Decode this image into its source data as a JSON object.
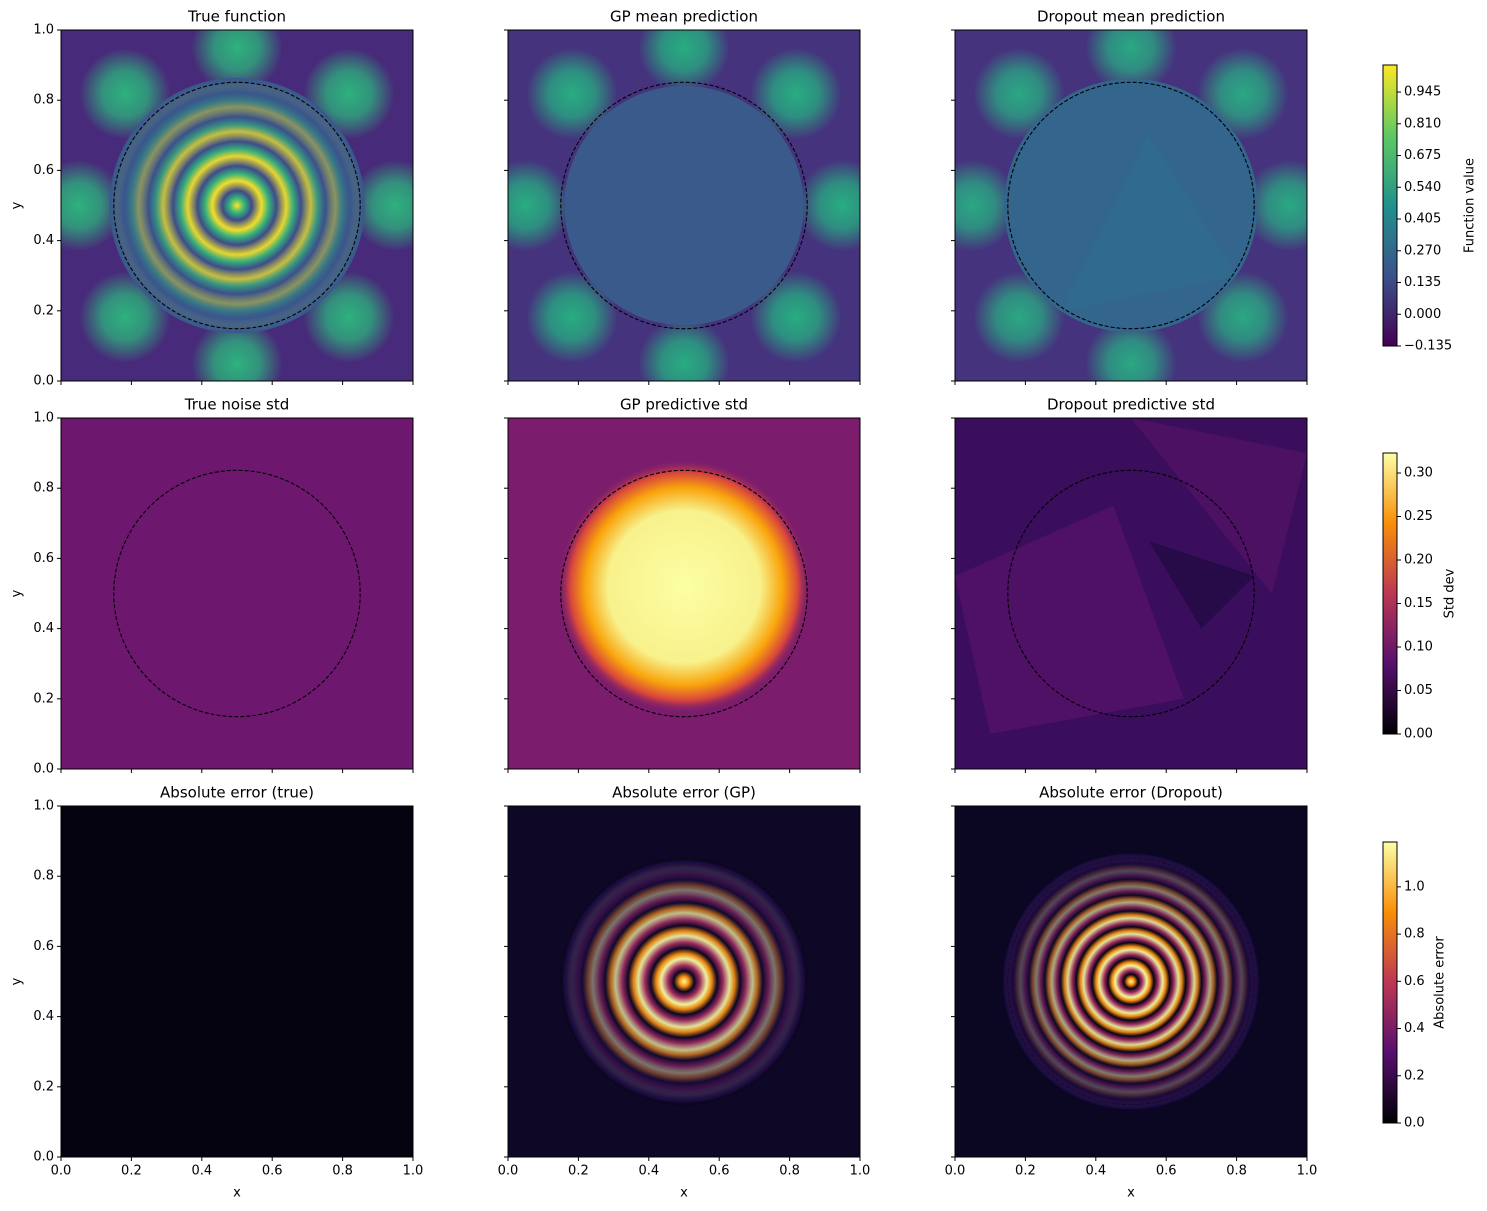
{
  "chart_data": [
    {
      "type": "heatmap",
      "title": "True function",
      "colormap": "viridis",
      "xlim": [
        0,
        1
      ],
      "ylim": [
        0,
        1
      ],
      "xticks": [
        0,
        0.2,
        0.4,
        0.6,
        0.8,
        1
      ],
      "yticks": [
        {
          "value": 0,
          "label": "0.0"
        },
        {
          "value": 0.2,
          "label": "0.2"
        },
        {
          "value": 0.4,
          "label": "0.4"
        },
        {
          "value": 0.6,
          "label": "0.6"
        },
        {
          "value": 0.8,
          "label": "0.8"
        },
        {
          "value": 1,
          "label": "1.0"
        }
      ],
      "ylabel": "y"
    },
    {
      "type": "heatmap",
      "title": "GP mean prediction",
      "colormap": "viridis",
      "xlim": [
        0,
        1
      ],
      "ylim": [
        0,
        1
      ],
      "xticks": [
        0,
        0.2,
        0.4,
        0.6,
        0.8,
        1
      ],
      "yticks": [
        0,
        0.2,
        0.4,
        0.6,
        0.8,
        1
      ]
    },
    {
      "type": "heatmap",
      "title": "Dropout mean prediction",
      "colormap": "viridis",
      "xlim": [
        0,
        1
      ],
      "ylim": [
        0,
        1
      ],
      "xticks": [
        0,
        0.2,
        0.4,
        0.6,
        0.8,
        1
      ],
      "yticks": [
        0,
        0.2,
        0.4,
        0.6,
        0.8,
        1
      ]
    },
    {
      "type": "heatmap",
      "title": "True noise std",
      "colormap": "inferno",
      "xlim": [
        0,
        1
      ],
      "ylim": [
        0,
        1
      ],
      "xticks": [
        0,
        0.2,
        0.4,
        0.6,
        0.8,
        1
      ],
      "yticks": [
        {
          "value": 0,
          "label": "0.0"
        },
        {
          "value": 0.2,
          "label": "0.2"
        },
        {
          "value": 0.4,
          "label": "0.4"
        },
        {
          "value": 0.6,
          "label": "0.6"
        },
        {
          "value": 0.8,
          "label": "0.8"
        },
        {
          "value": 1,
          "label": "1.0"
        }
      ],
      "ylabel": "y"
    },
    {
      "type": "heatmap",
      "title": "GP predictive std",
      "colormap": "inferno",
      "xlim": [
        0,
        1
      ],
      "ylim": [
        0,
        1
      ],
      "xticks": [
        0,
        0.2,
        0.4,
        0.6,
        0.8,
        1
      ],
      "yticks": [
        0,
        0.2,
        0.4,
        0.6,
        0.8,
        1
      ]
    },
    {
      "type": "heatmap",
      "title": "Dropout predictive std",
      "colormap": "inferno",
      "xlim": [
        0,
        1
      ],
      "ylim": [
        0,
        1
      ],
      "xticks": [
        0,
        0.2,
        0.4,
        0.6,
        0.8,
        1
      ],
      "yticks": [
        0,
        0.2,
        0.4,
        0.6,
        0.8,
        1
      ]
    },
    {
      "type": "heatmap",
      "title": "Absolute error (true)",
      "colormap": "inferno",
      "xlim": [
        0,
        1
      ],
      "ylim": [
        0,
        1
      ],
      "xticks": [
        {
          "value": 0,
          "label": "0.0"
        },
        {
          "value": 0.2,
          "label": "0.2"
        },
        {
          "value": 0.4,
          "label": "0.4"
        },
        {
          "value": 0.6,
          "label": "0.6"
        },
        {
          "value": 0.8,
          "label": "0.8"
        },
        {
          "value": 1,
          "label": "1.0"
        }
      ],
      "yticks": [
        {
          "value": 0,
          "label": "0.0"
        },
        {
          "value": 0.2,
          "label": "0.2"
        },
        {
          "value": 0.4,
          "label": "0.4"
        },
        {
          "value": 0.6,
          "label": "0.6"
        },
        {
          "value": 0.8,
          "label": "0.8"
        },
        {
          "value": 1,
          "label": "1.0"
        }
      ],
      "xlabel": "x",
      "ylabel": "y"
    },
    {
      "type": "heatmap",
      "title": "Absolute error (GP)",
      "colormap": "inferno",
      "xlim": [
        0,
        1
      ],
      "ylim": [
        0,
        1
      ],
      "xticks": [
        {
          "value": 0,
          "label": "0.0"
        },
        {
          "value": 0.2,
          "label": "0.2"
        },
        {
          "value": 0.4,
          "label": "0.4"
        },
        {
          "value": 0.6,
          "label": "0.6"
        },
        {
          "value": 0.8,
          "label": "0.8"
        },
        {
          "value": 1,
          "label": "1.0"
        }
      ],
      "yticks": [
        0,
        0.2,
        0.4,
        0.6,
        0.8,
        1
      ],
      "xlabel": "x"
    },
    {
      "type": "heatmap",
      "title": "Absolute error (Dropout)",
      "colormap": "inferno",
      "xlim": [
        0,
        1
      ],
      "ylim": [
        0,
        1
      ],
      "xticks": [
        {
          "value": 0,
          "label": "0.0"
        },
        {
          "value": 0.2,
          "label": "0.2"
        },
        {
          "value": 0.4,
          "label": "0.4"
        },
        {
          "value": 0.6,
          "label": "0.6"
        },
        {
          "value": 0.8,
          "label": "0.8"
        },
        {
          "value": 1,
          "label": "1.0"
        }
      ],
      "yticks": [
        0,
        0.2,
        0.4,
        0.6,
        0.8,
        1
      ],
      "xlabel": "x"
    }
  ],
  "colorbars": [
    {
      "label": "Function value",
      "colormap": "viridis",
      "lim": [
        -0.135,
        1.06
      ],
      "ticks": [
        {
          "value": -0.135,
          "label": "−0.135"
        },
        {
          "value": 0,
          "label": "0.000"
        },
        {
          "value": 0.135,
          "label": "0.135"
        },
        {
          "value": 0.27,
          "label": "0.270"
        },
        {
          "value": 0.405,
          "label": "0.405"
        },
        {
          "value": 0.54,
          "label": "0.540"
        },
        {
          "value": 0.675,
          "label": "0.675"
        },
        {
          "value": 0.81,
          "label": "0.810"
        },
        {
          "value": 0.945,
          "label": "0.945"
        }
      ]
    },
    {
      "label": "Std dev",
      "colormap": "inferno",
      "lim": [
        0,
        0.323
      ],
      "ticks": [
        {
          "value": 0,
          "label": "0.00"
        },
        {
          "value": 0.05,
          "label": "0.05"
        },
        {
          "value": 0.1,
          "label": "0.10"
        },
        {
          "value": 0.15,
          "label": "0.15"
        },
        {
          "value": 0.2,
          "label": "0.20"
        },
        {
          "value": 0.25,
          "label": "0.25"
        },
        {
          "value": 0.3,
          "label": "0.30"
        }
      ]
    },
    {
      "label": "Absolute error",
      "colormap": "inferno",
      "lim": [
        0,
        1.19
      ],
      "ticks": [
        {
          "value": 0,
          "label": "0.0"
        },
        {
          "value": 0.2,
          "label": "0.2"
        },
        {
          "value": 0.4,
          "label": "0.4"
        },
        {
          "value": 0.6,
          "label": "0.6"
        },
        {
          "value": 0.8,
          "label": "0.8"
        },
        {
          "value": 1,
          "label": "1.0"
        }
      ]
    }
  ]
}
